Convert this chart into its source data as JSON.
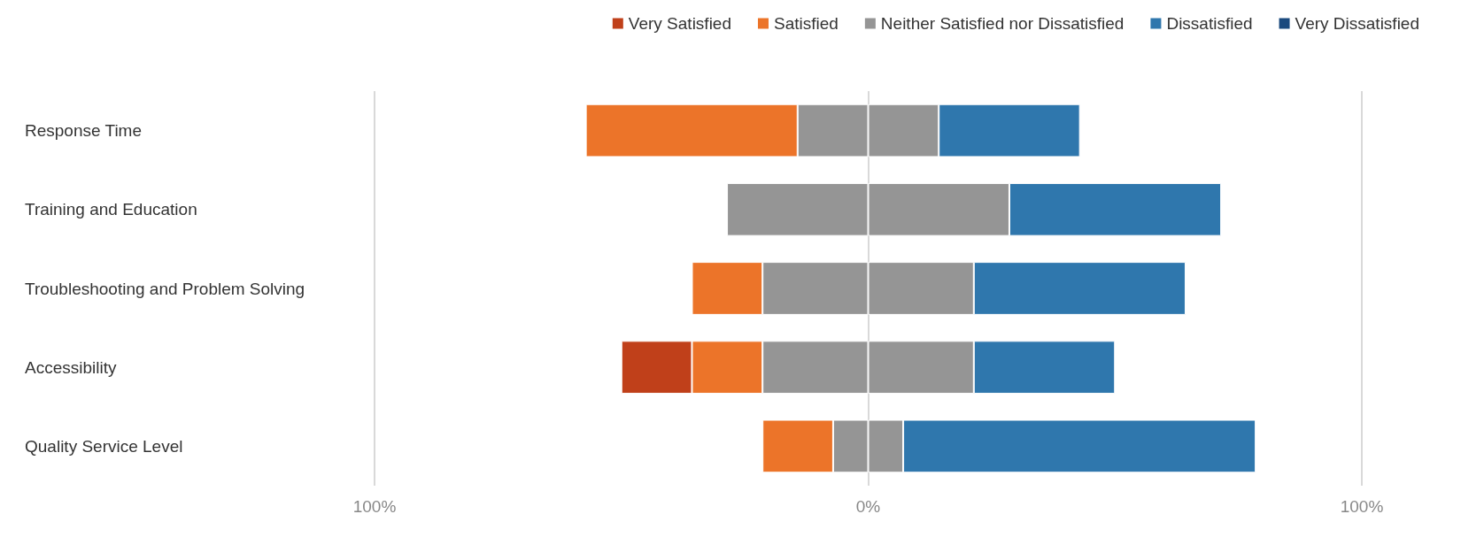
{
  "chart_data": {
    "type": "bar",
    "orientation": "horizontal",
    "stacked": true,
    "categories": [
      "Response Time",
      "Training and Education",
      "Troubleshooting and Problem Solving",
      "Accessibility",
      "Quality Service Level"
    ],
    "series": [
      {
        "name": "Neither Satisfied nor Dissatisfied",
        "color": "#959595",
        "values": [
          -14.3,
          -28.6,
          -21.4,
          -21.4,
          -7.1
        ]
      },
      {
        "name": "Satisfied",
        "color": "#ec7429",
        "values": [
          -42.9,
          null,
          -14.3,
          -14.3,
          -14.3
        ]
      },
      {
        "name": "Very Satisfied",
        "color": "#c0401a",
        "values": [
          null,
          null,
          null,
          -14.3,
          null
        ]
      },
      {
        "color": "#959595",
        "values": [
          14.3,
          28.6,
          21.4,
          21.4,
          7.1
        ]
      },
      {
        "name": "Dissatisfied",
        "color": "#2f77ad",
        "values": [
          28.6,
          42.9,
          42.9,
          28.6,
          71.4
        ]
      },
      {
        "name": "Very Dissatisfied",
        "color": "#1b4a7e",
        "values": [
          null,
          null,
          null,
          null,
          null
        ]
      }
    ],
    "xlim": [
      -100,
      100
    ],
    "xticks": [
      {
        "value": -100,
        "label": "100%"
      },
      {
        "value": 0,
        "label": "0%"
      },
      {
        "value": 100,
        "label": "100%"
      }
    ],
    "grid": "x",
    "legend": "top right"
  }
}
